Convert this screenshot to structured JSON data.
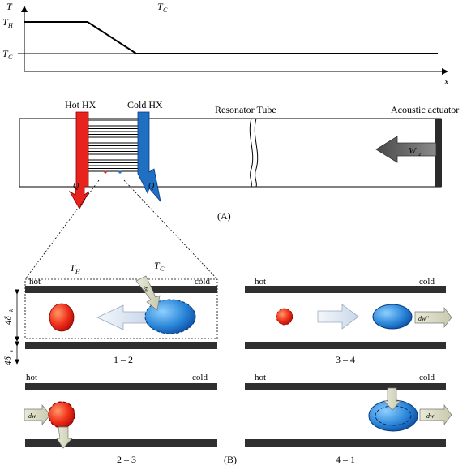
{
  "temperature_plot": {
    "y_axis_label": "T",
    "x_axis_label": "x",
    "hot_tick_label": "T",
    "hot_tick_sub": "H",
    "cold_tick_label": "T",
    "cold_tick_sub": "C",
    "top_label": "T",
    "top_label_sub": "C"
  },
  "apparatus": {
    "hot_hx_label": "Hot HX",
    "cold_hx_label": "Cold HX",
    "resonator_label": "Resonator Tube",
    "actuator_label": "Acoustic actuator",
    "work_symbol": "W",
    "work_sub": "a",
    "heat_symbol": "Q",
    "hot_color": "#e8231d",
    "cold_color": "#1f6fc2",
    "panel_label": "(A)"
  },
  "cycle": {
    "temp_hot": "T",
    "temp_hot_sub": "H",
    "temp_cold": "T",
    "temp_cold_sub": "C",
    "hot_word": "hot",
    "cold_word": "cold",
    "spacing_label": "4δ",
    "spacing_sub": "k",
    "spacing_label2": "4δ",
    "spacing_sub2": "s",
    "steps": [
      {
        "id": "1 – 2"
      },
      {
        "id": "3 – 4"
      },
      {
        "id": "2 – 3"
      },
      {
        "id": "4 – 1"
      }
    ],
    "dw_1": "dw",
    "dw_2": "dw''",
    "dw_3": "dw",
    "dw_4": "dw'",
    "panel_label": "(B)"
  }
}
